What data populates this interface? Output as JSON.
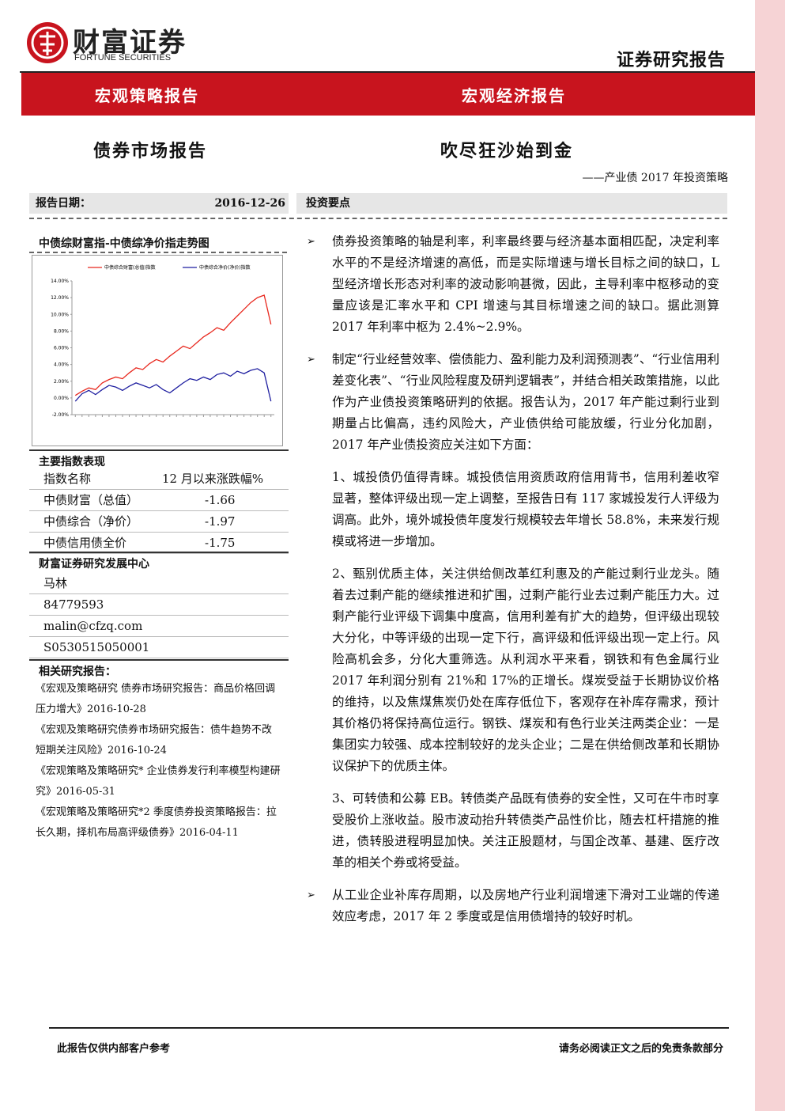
{
  "header": {
    "brand": "财富证券",
    "brand_en": "FORTUNE SECURITIES",
    "doc_type": "证券研究报告"
  },
  "banner": {
    "left": "宏观策略报告",
    "right": "宏观经济报告"
  },
  "titles": {
    "left": "债券市场报告",
    "main": "吹尽狂沙始到金",
    "subtitle": "——产业债 2017 年投资策略"
  },
  "sidebar": {
    "date_label": "报告日期：",
    "date": "2016-12-26",
    "chart_title": "中债综财富指-中债综净价指走势图",
    "index_title": "主要指数表现",
    "index_header": [
      "指数名称",
      "12 月以来涨跌幅%"
    ],
    "index_rows": [
      [
        "中债财富（总值）",
        "-1.66"
      ],
      [
        "中债综合（净价）",
        "-1.97"
      ],
      [
        "中债信用债全价",
        "-1.75"
      ]
    ],
    "center": "财富证券研究发展中心",
    "contacts": [
      "马林",
      "84779593",
      "malin@cfzq.com",
      "S0530515050001"
    ],
    "related_title": "相关研究报告：",
    "related": [
      "《宏观及策略研究 债券市场研究报告：商品价格回调压力增大》2016-10-28",
      "《宏观及策略研究债券市场研究报告：债牛趋势不改 短期关注风险》2016-10-24",
      "《宏观策略及策略研究* 企业债券发行利率模型构建研究》2016-05-31",
      "《宏观策略及策略研究*2 季度债券投资策略报告：拉长久期，择机布局高评级债券》2016-04-11"
    ]
  },
  "chart_data": {
    "type": "line",
    "categories": [
      null,
      null,
      null,
      null,
      null,
      null,
      null,
      null,
      null,
      null,
      null,
      null,
      null,
      null,
      null,
      null,
      null,
      null,
      null,
      null,
      null,
      null,
      null,
      null,
      null,
      null,
      null,
      null,
      null,
      null
    ],
    "series": [
      {
        "name": "中债综合财富(总值)指数",
        "color": "#e8281e",
        "values": [
          0.3,
          0.8,
          1.2,
          1.0,
          1.8,
          2.2,
          2.5,
          2.3,
          3.0,
          3.6,
          3.4,
          4.1,
          4.6,
          4.3,
          5.0,
          5.6,
          6.2,
          5.9,
          6.6,
          7.3,
          7.8,
          8.4,
          8.1,
          9.0,
          9.8,
          10.6,
          11.4,
          12.0,
          12.3,
          8.8
        ]
      },
      {
        "name": "中债综合净价(净价)指数",
        "color": "#1f1fa0",
        "values": [
          -0.4,
          0.5,
          0.9,
          0.4,
          1.0,
          1.5,
          1.3,
          0.9,
          1.4,
          1.8,
          1.5,
          1.2,
          1.6,
          1.0,
          0.6,
          1.2,
          1.8,
          2.3,
          2.1,
          2.5,
          2.2,
          2.8,
          3.0,
          2.6,
          3.2,
          2.9,
          3.3,
          3.5,
          3.0,
          -0.4
        ]
      }
    ],
    "ylim": [
      -2,
      14
    ],
    "yticks": [
      {
        "value": -2,
        "label": "-2.00%"
      },
      {
        "value": 0,
        "label": "0.00%"
      },
      {
        "value": 2,
        "label": "2.00%"
      },
      {
        "value": 4,
        "label": "4.00%"
      },
      {
        "value": 6,
        "label": "6.00%"
      },
      {
        "value": 8,
        "label": "8.00%"
      },
      {
        "value": 10,
        "label": "10.00%"
      },
      {
        "value": 12,
        "label": "12.00%"
      },
      {
        "value": 14,
        "label": "14.00%"
      }
    ],
    "grid": false
  },
  "main": {
    "heading": "投资要点",
    "points": [
      {
        "text": "债券投资策略的轴是利率，利率最终要与经济基本面相匹配，决定利率水平的不是经济增速的高低，而是实际增速与增长目标之间的缺口，L 型经济增长形态对利率的波动影响甚微，因此，主导利率中枢移动的变量应该是汇率水平和 CPI 增速与其目标增速之间的缺口。据此测算 2017 年利率中枢为 2.4%~2.9%。"
      },
      {
        "text": "制定“行业经营效率、偿债能力、盈利能力及利润预测表”、“行业信用利差变化表”、“行业风险程度及研判逻辑表”，并结合相关政策措施，以此作为产业债投资策略研判的依据。报告认为，2017 年产能过剩行业到期量占比偏高，违约风险大，产业债供给可能放缓，行业分化加剧，2017 年产业债投资应关注如下方面：",
        "items": [
          "1、城投债仍值得青睐。城投债信用资质政府信用背书，信用利差收窄显著，整体评级出现一定上调整，至报告日有 117 家城投发行人评级为调高。此外，境外城投债年度发行规模较去年增长 58.8%，未来发行规模或将进一步增加。",
          "2、甄别优质主体，关注供给侧改革红利惠及的产能过剩行业龙头。随着去过剩产能的继续推进和扩围，过剩产能行业去过剩产能压力大。过剩产能行业评级下调集中度高，信用利差有扩大的趋势，但评级出现较大分化，中等评级的出现一定下行，高评级和低评级出现一定上行。风险高机会多，分化大重筛选。从利润水平来看，钢铁和有色金属行业 2017 年利润分别有 21%和 17%的正增长。煤炭受益于长期协议价格的维持，以及焦煤焦炭仍处在库存低位下，客观存在补库存需求，预计其价格仍将保持高位运行。钢铁、煤炭和有色行业关注两类企业：一是集团实力较强、成本控制较好的龙头企业；二是在供给侧改革和长期协议保护下的优质主体。",
          "3、可转债和公募 EB。转债类产品既有债券的安全性，又可在牛市时享受股价上涨收益。股市波动抬升转债类产品性价比，随去杠杆措施的推进，债转股进程明显加快。关注正股题材，与国企改革、基建、医疗改革的相关个券或将受益。"
        ]
      },
      {
        "text": "从工业企业补库存周期，以及房地产行业利润增速下滑对工业端的传递效应考虑，2017 年 2 季度或是信用债增持的较好时机。"
      }
    ]
  },
  "footer": {
    "left": "此报告仅供内部客户参考",
    "right": "请务必阅读正文之后的免责条款部分"
  }
}
